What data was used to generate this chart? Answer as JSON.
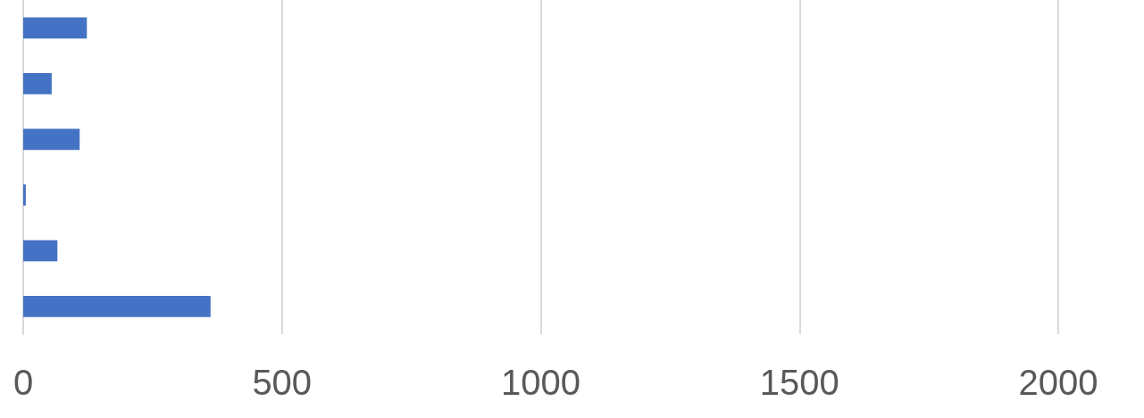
{
  "chart_data": {
    "type": "bar",
    "orientation": "horizontal",
    "categories": [
      null,
      null,
      null,
      null,
      null,
      null
    ],
    "values": [
      123,
      55,
      109,
      5,
      66,
      362
    ],
    "color": "#4472c4",
    "xlim": [
      0,
      2000
    ],
    "xticks": [
      0,
      500,
      1000,
      1500,
      2000
    ],
    "grid": "x"
  }
}
